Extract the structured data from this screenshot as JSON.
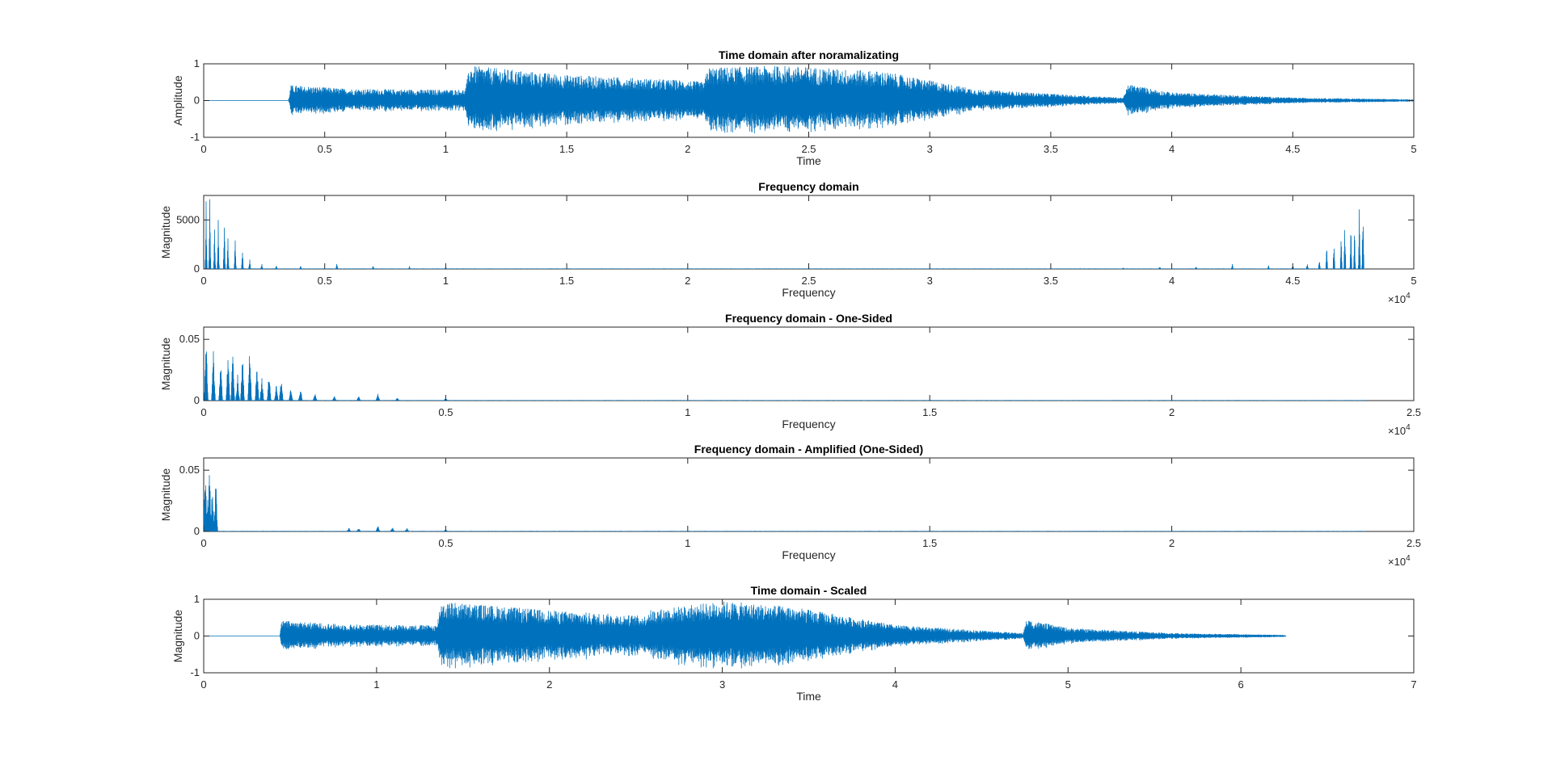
{
  "colors": {
    "series": "#0072BD",
    "axes": "#262626",
    "background": "#ffffff"
  },
  "chart_data": [
    {
      "type": "line",
      "signal": "audio",
      "title": "Time domain after noramalizating",
      "xlabel": "Time",
      "ylabel": "Amplitude",
      "xlim": [
        0,
        5
      ],
      "ylim": [
        -1,
        1
      ],
      "xticks": [
        0,
        0.5,
        1,
        1.5,
        2,
        2.5,
        3,
        3.5,
        4,
        4.5,
        5
      ],
      "yticks": [
        -1,
        0,
        1
      ],
      "x_multiplier": "",
      "envelope": [
        [
          0,
          0.0
        ],
        [
          0.35,
          0.0
        ],
        [
          0.36,
          0.42
        ],
        [
          0.6,
          0.32
        ],
        [
          0.9,
          0.3
        ],
        [
          1.08,
          0.3
        ],
        [
          1.1,
          0.95
        ],
        [
          1.5,
          0.7
        ],
        [
          2.0,
          0.55
        ],
        [
          2.07,
          0.5
        ],
        [
          2.08,
          0.9
        ],
        [
          2.4,
          0.95
        ],
        [
          2.8,
          0.8
        ],
        [
          3.2,
          0.3
        ],
        [
          3.6,
          0.15
        ],
        [
          3.8,
          0.08
        ],
        [
          3.82,
          0.45
        ],
        [
          4.0,
          0.22
        ],
        [
          4.5,
          0.08
        ],
        [
          5.0,
          0.03
        ]
      ]
    },
    {
      "type": "line",
      "signal": "spectrum",
      "title": "Frequency domain",
      "xlabel": "Frequency",
      "ylabel": "Magnitude",
      "xlim": [
        0,
        5
      ],
      "ylim": [
        0,
        7500
      ],
      "xticks": [
        0,
        0.5,
        1,
        1.5,
        2,
        2.5,
        3,
        3.5,
        4,
        4.5,
        5
      ],
      "yticks": [
        0,
        5000
      ],
      "x_multiplier": "×10^4",
      "data_xmax": 4.8,
      "mirrored": true,
      "peaks": [
        [
          0.01,
          7500
        ],
        [
          0.025,
          7400
        ],
        [
          0.045,
          4200
        ],
        [
          0.06,
          5500
        ],
        [
          0.085,
          5400
        ],
        [
          0.1,
          3800
        ],
        [
          0.13,
          3300
        ],
        [
          0.16,
          2500
        ],
        [
          0.19,
          1100
        ],
        [
          0.24,
          700
        ],
        [
          0.3,
          450
        ],
        [
          0.4,
          400
        ],
        [
          0.55,
          600
        ],
        [
          0.7,
          350
        ],
        [
          0.85,
          300
        ],
        [
          1.0,
          150
        ]
      ]
    },
    {
      "type": "line",
      "signal": "spectrum",
      "title": "Frequency domain - One-Sided",
      "xlabel": "Frequency",
      "ylabel": "Magnitude",
      "xlim": [
        0,
        2.5
      ],
      "ylim": [
        0,
        0.06
      ],
      "xticks": [
        0,
        0.5,
        1,
        1.5,
        2,
        2.5
      ],
      "yticks": [
        0,
        0.05
      ],
      "x_multiplier": "×10^4",
      "data_xmax": 2.4,
      "mirrored": false,
      "peaks": [
        [
          0.005,
          0.06
        ],
        [
          0.02,
          0.045
        ],
        [
          0.035,
          0.035
        ],
        [
          0.05,
          0.047
        ],
        [
          0.06,
          0.042
        ],
        [
          0.07,
          0.022
        ],
        [
          0.08,
          0.046
        ],
        [
          0.095,
          0.045
        ],
        [
          0.11,
          0.03
        ],
        [
          0.12,
          0.02
        ],
        [
          0.135,
          0.026
        ],
        [
          0.15,
          0.015
        ],
        [
          0.16,
          0.02
        ],
        [
          0.18,
          0.012
        ],
        [
          0.2,
          0.011
        ],
        [
          0.23,
          0.007
        ],
        [
          0.27,
          0.004
        ],
        [
          0.32,
          0.004
        ],
        [
          0.36,
          0.006
        ],
        [
          0.4,
          0.003
        ],
        [
          0.5,
          0.002
        ]
      ]
    },
    {
      "type": "line",
      "signal": "spectrum",
      "title": "Frequency domain - Amplified (One-Sided)",
      "xlabel": "Frequency",
      "ylabel": "Magnitude",
      "xlim": [
        0,
        2.5
      ],
      "ylim": [
        0,
        0.06
      ],
      "xticks": [
        0,
        0.5,
        1,
        1.5,
        2,
        2.5
      ],
      "yticks": [
        0,
        0.05
      ],
      "x_multiplier": "×10^4",
      "data_xmax": 2.4,
      "mirrored": false,
      "peaks": [
        [
          0.003,
          0.06
        ],
        [
          0.008,
          0.03
        ],
        [
          0.012,
          0.055
        ],
        [
          0.018,
          0.04
        ],
        [
          0.025,
          0.045
        ],
        [
          0.3,
          0.003
        ],
        [
          0.32,
          0.003
        ],
        [
          0.36,
          0.005
        ],
        [
          0.39,
          0.004
        ],
        [
          0.42,
          0.003
        ],
        [
          0.5,
          0.002
        ]
      ]
    },
    {
      "type": "line",
      "signal": "audio",
      "title": "Time domain - Scaled",
      "xlabel": "Time",
      "ylabel": "Magnitude",
      "xlim": [
        0,
        7
      ],
      "ylim": [
        -1,
        1
      ],
      "xticks": [
        0,
        1,
        2,
        3,
        4,
        5,
        6,
        7
      ],
      "yticks": [
        -1,
        0,
        1
      ],
      "x_multiplier": "",
      "envelope": [
        [
          0,
          0.0
        ],
        [
          0.44,
          0.0
        ],
        [
          0.45,
          0.42
        ],
        [
          0.8,
          0.32
        ],
        [
          1.2,
          0.3
        ],
        [
          1.35,
          0.3
        ],
        [
          1.37,
          0.95
        ],
        [
          2.0,
          0.7
        ],
        [
          2.55,
          0.55
        ],
        [
          2.57,
          0.7
        ],
        [
          3.0,
          0.95
        ],
        [
          3.4,
          0.8
        ],
        [
          4.0,
          0.3
        ],
        [
          4.5,
          0.15
        ],
        [
          4.74,
          0.08
        ],
        [
          4.76,
          0.45
        ],
        [
          5.0,
          0.22
        ],
        [
          5.6,
          0.08
        ],
        [
          6.25,
          0.03
        ],
        [
          6.26,
          0.0
        ]
      ]
    }
  ]
}
